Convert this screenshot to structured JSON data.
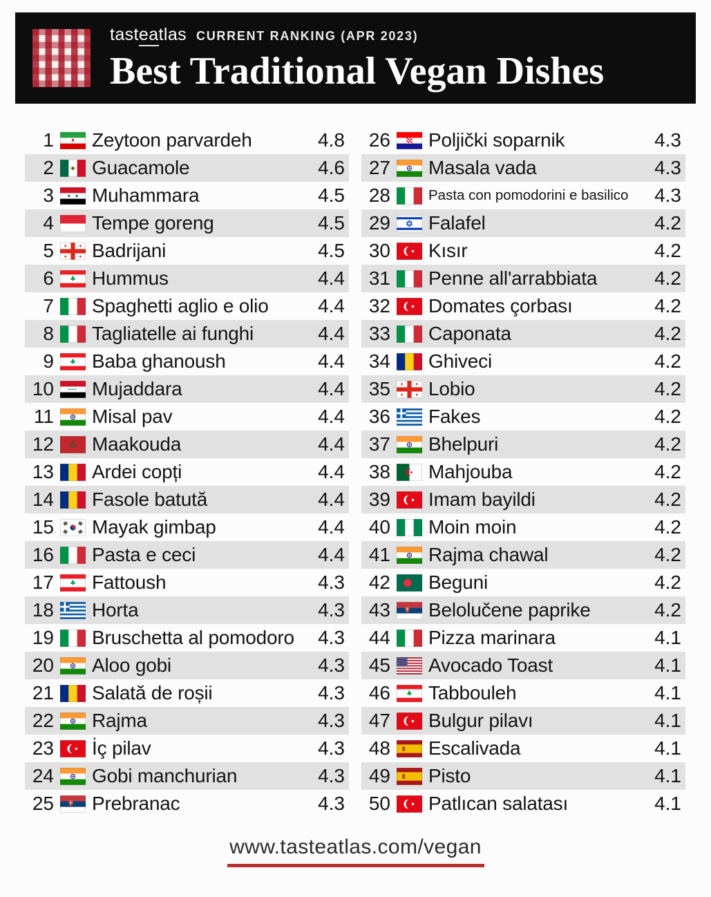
{
  "header": {
    "brand": {
      "part1": "tast",
      "part2": "ea",
      "part3": "tlas",
      "full": "tasteatlas"
    },
    "ranking_label": "CURRENT RANKING (APR 2023)",
    "title": "Best Traditional Vegan Dishes"
  },
  "footer": {
    "url": "www.tasteatlas.com/vegan"
  },
  "colors": {
    "header_bg": "#0d0d0d",
    "stripe_gray": "#e1e1e1",
    "accent_red": "#b5312e",
    "gingham_red": "#a61325"
  },
  "ranking": {
    "items": [
      {
        "rank": 1,
        "country": "Iran",
        "dish": "Zeytoon parvardeh",
        "rating": "4.8"
      },
      {
        "rank": 2,
        "country": "Mexico",
        "dish": "Guacamole",
        "rating": "4.6"
      },
      {
        "rank": 3,
        "country": "Syria",
        "dish": "Muhammara",
        "rating": "4.5"
      },
      {
        "rank": 4,
        "country": "Indonesia",
        "dish": "Tempe goreng",
        "rating": "4.5"
      },
      {
        "rank": 5,
        "country": "Georgia",
        "dish": "Badrijani",
        "rating": "4.5"
      },
      {
        "rank": 6,
        "country": "Lebanon",
        "dish": "Hummus",
        "rating": "4.4"
      },
      {
        "rank": 7,
        "country": "Italy",
        "dish": "Spaghetti aglio e olio",
        "rating": "4.4"
      },
      {
        "rank": 8,
        "country": "Italy",
        "dish": "Tagliatelle ai funghi",
        "rating": "4.4"
      },
      {
        "rank": 9,
        "country": "Lebanon",
        "dish": "Baba ghanoush",
        "rating": "4.4"
      },
      {
        "rank": 10,
        "country": "Iraq",
        "dish": "Mujaddara",
        "rating": "4.4"
      },
      {
        "rank": 11,
        "country": "India",
        "dish": "Misal pav",
        "rating": "4.4"
      },
      {
        "rank": 12,
        "country": "Morocco",
        "dish": "Maakouda",
        "rating": "4.4"
      },
      {
        "rank": 13,
        "country": "Romania",
        "dish": "Ardei copți",
        "rating": "4.4"
      },
      {
        "rank": 14,
        "country": "Romania",
        "dish": "Fasole batută",
        "rating": "4.4"
      },
      {
        "rank": 15,
        "country": "South Korea",
        "dish": "Mayak gimbap",
        "rating": "4.4"
      },
      {
        "rank": 16,
        "country": "Italy",
        "dish": "Pasta e ceci",
        "rating": "4.4"
      },
      {
        "rank": 17,
        "country": "Lebanon",
        "dish": "Fattoush",
        "rating": "4.3"
      },
      {
        "rank": 18,
        "country": "Greece",
        "dish": "Horta",
        "rating": "4.3"
      },
      {
        "rank": 19,
        "country": "Italy",
        "dish": "Bruschetta al pomodoro",
        "rating": "4.3"
      },
      {
        "rank": 20,
        "country": "India",
        "dish": "Aloo gobi",
        "rating": "4.3"
      },
      {
        "rank": 21,
        "country": "Romania",
        "dish": "Salată de roșii",
        "rating": "4.3"
      },
      {
        "rank": 22,
        "country": "India",
        "dish": "Rajma",
        "rating": "4.3"
      },
      {
        "rank": 23,
        "country": "Turkey",
        "dish": "İç pilav",
        "rating": "4.3"
      },
      {
        "rank": 24,
        "country": "India",
        "dish": "Gobi manchurian",
        "rating": "4.3"
      },
      {
        "rank": 25,
        "country": "Serbia",
        "dish": "Prebranac",
        "rating": "4.3"
      },
      {
        "rank": 26,
        "country": "Croatia",
        "dish": "Poljički soparnik",
        "rating": "4.3"
      },
      {
        "rank": 27,
        "country": "India",
        "dish": "Masala vada",
        "rating": "4.3"
      },
      {
        "rank": 28,
        "country": "Italy",
        "dish": "Pasta con pomodorini e basilico",
        "rating": "4.3"
      },
      {
        "rank": 29,
        "country": "Israel",
        "dish": "Falafel",
        "rating": "4.2"
      },
      {
        "rank": 30,
        "country": "Turkey",
        "dish": "Kısır",
        "rating": "4.2"
      },
      {
        "rank": 31,
        "country": "Italy",
        "dish": "Penne all'arrabbiata",
        "rating": "4.2"
      },
      {
        "rank": 32,
        "country": "Turkey",
        "dish": "Domates çorbası",
        "rating": "4.2"
      },
      {
        "rank": 33,
        "country": "Italy",
        "dish": "Caponata",
        "rating": "4.2"
      },
      {
        "rank": 34,
        "country": "Romania",
        "dish": "Ghiveci",
        "rating": "4.2"
      },
      {
        "rank": 35,
        "country": "Georgia",
        "dish": "Lobio",
        "rating": "4.2"
      },
      {
        "rank": 36,
        "country": "Greece",
        "dish": "Fakes",
        "rating": "4.2"
      },
      {
        "rank": 37,
        "country": "India",
        "dish": "Bhelpuri",
        "rating": "4.2"
      },
      {
        "rank": 38,
        "country": "Algeria",
        "dish": "Mahjouba",
        "rating": "4.2"
      },
      {
        "rank": 39,
        "country": "Turkey",
        "dish": "Imam bayildi",
        "rating": "4.2"
      },
      {
        "rank": 40,
        "country": "Nigeria",
        "dish": "Moin moin",
        "rating": "4.2"
      },
      {
        "rank": 41,
        "country": "India",
        "dish": "Rajma chawal",
        "rating": "4.2"
      },
      {
        "rank": 42,
        "country": "Bangladesh",
        "dish": "Beguni",
        "rating": "4.2"
      },
      {
        "rank": 43,
        "country": "Serbia",
        "dish": "Belolučene paprike",
        "rating": "4.2"
      },
      {
        "rank": 44,
        "country": "Italy",
        "dish": "Pizza marinara",
        "rating": "4.1"
      },
      {
        "rank": 45,
        "country": "United States",
        "dish": "Avocado Toast",
        "rating": "4.1"
      },
      {
        "rank": 46,
        "country": "Lebanon",
        "dish": "Tabbouleh",
        "rating": "4.1"
      },
      {
        "rank": 47,
        "country": "Turkey",
        "dish": "Bulgur pilavı",
        "rating": "4.1"
      },
      {
        "rank": 48,
        "country": "Spain",
        "dish": "Escalivada",
        "rating": "4.1"
      },
      {
        "rank": 49,
        "country": "Spain",
        "dish": "Pisto",
        "rating": "4.1"
      },
      {
        "rank": 50,
        "country": "Turkey",
        "dish": "Patlıcan salatası",
        "rating": "4.1"
      }
    ]
  }
}
